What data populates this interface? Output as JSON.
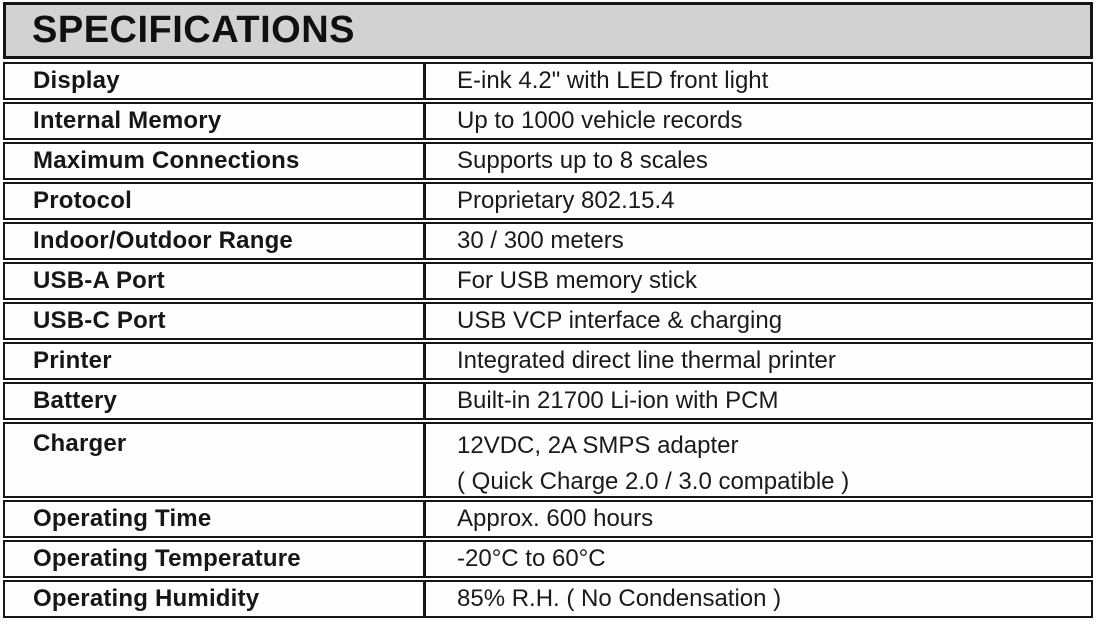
{
  "title": "SPECIFICATIONS",
  "table": {
    "rows": [
      {
        "label": "Display",
        "value": "E-ink 4.2\" with LED front light"
      },
      {
        "label": "Internal Memory",
        "value": "Up to 1000 vehicle records"
      },
      {
        "label": "Maximum Connections",
        "value": "Supports up to 8 scales"
      },
      {
        "label": "Protocol",
        "value": "Proprietary 802.15.4"
      },
      {
        "label": "Indoor/Outdoor Range",
        "value": "30 / 300 meters"
      },
      {
        "label": "USB-A Port",
        "value": "For USB memory stick"
      },
      {
        "label": "USB-C Port",
        "value": "USB VCP interface & charging"
      },
      {
        "label": "Printer",
        "value": "Integrated direct line thermal printer"
      },
      {
        "label": "Battery",
        "value": "Built-in 21700 Li-ion with PCM"
      },
      {
        "label": "Charger",
        "value": "12VDC, 2A SMPS adapter",
        "value2": "( Quick Charge 2.0 / 3.0 compatible )"
      },
      {
        "label": "Operating Time",
        "value": "Approx. 600 hours"
      },
      {
        "label": "Operating Temperature",
        "value": "-20°C to 60°C"
      },
      {
        "label": "Operating Humidity",
        "value": "85% R.H. ( No Condensation )"
      }
    ]
  },
  "colors": {
    "banner_background": "#d2d2d2",
    "border": "#151515",
    "text": "#1a1a1a",
    "page_background": "#fdfdfd"
  }
}
